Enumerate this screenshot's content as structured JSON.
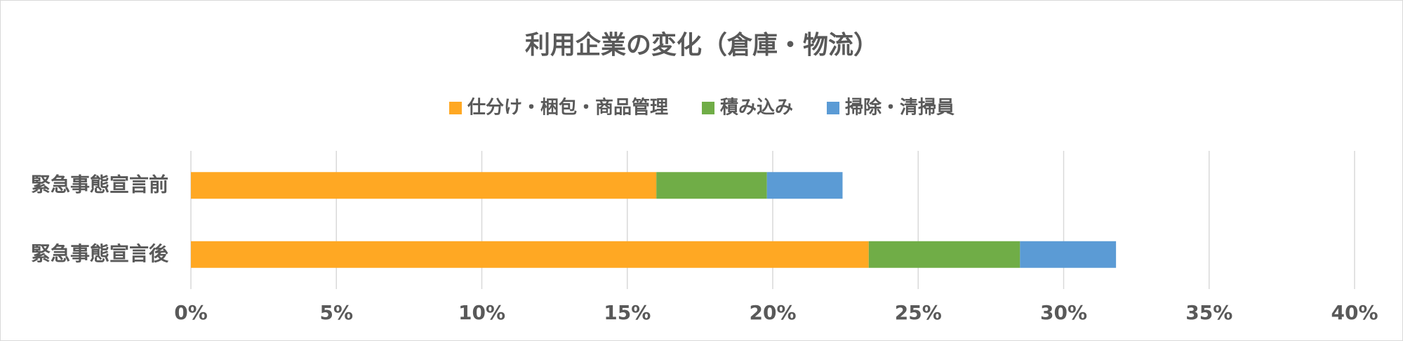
{
  "chart_data": {
    "type": "stacked-barh",
    "title": "利用企業の変化（倉庫・物流）",
    "categories": [
      "緊急事態宣言前",
      "緊急事態宣言後"
    ],
    "series": [
      {
        "name": "仕分け・梱包・商品管理",
        "color": "#FFA823",
        "values": [
          16.0,
          23.3
        ]
      },
      {
        "name": "積み込み",
        "color": "#70AD47",
        "values": [
          3.8,
          5.2
        ]
      },
      {
        "name": "掃除・清掃員",
        "color": "#5B9BD5",
        "values": [
          2.6,
          3.3
        ]
      }
    ],
    "xlim": [
      0,
      40
    ],
    "xticks": [
      {
        "value": 0,
        "label": "0%"
      },
      {
        "value": 5,
        "label": "5%"
      },
      {
        "value": 10,
        "label": "10%"
      },
      {
        "value": 15,
        "label": "15%"
      },
      {
        "value": 20,
        "label": "20%"
      },
      {
        "value": 25,
        "label": "25%"
      },
      {
        "value": 30,
        "label": "30%"
      },
      {
        "value": 35,
        "label": "35%"
      },
      {
        "value": 40,
        "label": "40%"
      }
    ],
    "grid": true,
    "legend": "top"
  }
}
